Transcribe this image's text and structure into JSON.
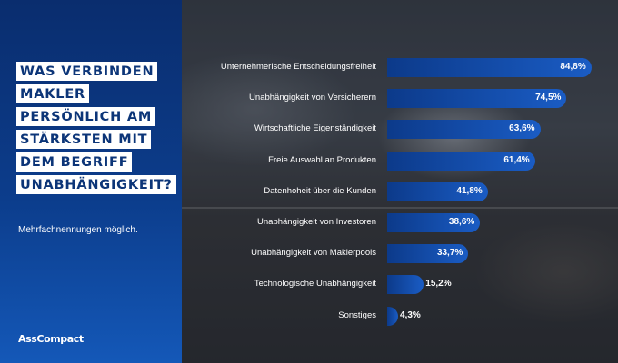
{
  "title_lines": [
    "WAS VERBINDEN",
    "MAKLER",
    "PERSÖNLICH AM",
    "STÄRKSTEN MIT",
    "DEM BEGRIFF",
    "UNABHÄNGIGKEIT?"
  ],
  "subtitle": "Mehrfachnennungen möglich.",
  "brand": "AssCompact",
  "colors": {
    "panel": "#0c3d8c",
    "bar_start": "#0c3a8a",
    "bar_end": "#1a5cc4",
    "title_text": "#0c3578"
  },
  "chart_data": {
    "type": "bar",
    "orientation": "horizontal",
    "categories": [
      "Unternehmerische Entscheidungsfreiheit",
      "Unabhängigkeit von Versicherern",
      "Wirtschaftliche Eigenständigkeit",
      "Freie Auswahl an Produkten",
      "Datenhoheit über die Kunden",
      "Unabhängigkeit von Investoren",
      "Unabhängigkeit von Maklerpools",
      "Technologische Unabhängigkeit",
      "Sonstiges"
    ],
    "values": [
      84.8,
      74.5,
      63.6,
      61.4,
      41.8,
      38.6,
      33.7,
      15.2,
      4.3
    ],
    "value_labels": [
      "84,8%",
      "74,5%",
      "63,6%",
      "61,4%",
      "41,8%",
      "38,6%",
      "33,7%",
      "15,2%",
      "4,3%"
    ],
    "xlim": [
      0,
      100
    ],
    "grid": false,
    "legend": "none"
  }
}
